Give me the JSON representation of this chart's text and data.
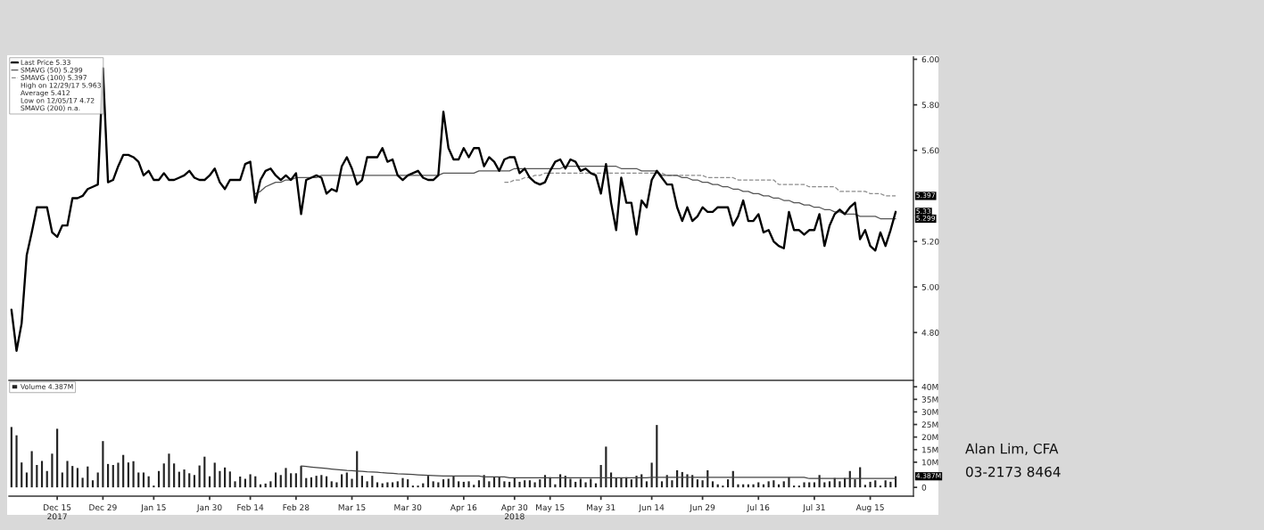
{
  "chart_data": [
    {
      "type": "line",
      "categories": [
        null,
        null,
        null,
        null,
        null,
        null,
        null,
        null,
        null,
        null,
        null,
        null,
        null,
        null,
        null,
        null,
        null,
        null,
        null,
        null,
        null,
        null,
        null,
        null,
        null,
        null,
        null,
        null,
        null,
        null,
        null,
        null,
        null,
        null,
        null,
        null,
        null,
        null,
        null,
        null,
        null,
        null,
        null,
        null,
        null,
        null,
        null,
        null,
        null,
        null,
        null,
        null,
        null,
        null,
        null,
        null,
        null,
        null,
        null,
        null,
        null,
        null,
        null,
        null,
        null,
        null,
        null,
        null,
        null,
        null,
        null,
        null,
        null,
        null,
        null,
        null,
        null,
        null,
        null,
        null,
        null,
        null,
        null,
        null,
        null,
        null,
        null,
        null,
        null,
        null,
        null,
        null,
        null,
        null,
        null,
        null,
        null,
        null,
        null,
        null,
        null,
        null,
        null,
        null,
        null,
        null,
        null,
        null,
        null,
        null,
        null,
        null,
        null,
        null,
        null,
        null,
        null,
        null,
        null,
        null,
        null,
        null,
        null,
        null,
        null,
        null,
        null,
        null,
        null,
        null,
        null,
        null,
        null,
        null,
        null,
        null,
        null,
        null,
        null,
        null,
        null,
        null,
        null,
        null,
        null,
        null,
        null,
        null,
        null,
        null,
        null,
        null,
        null,
        null,
        null,
        null,
        null,
        null,
        null,
        null,
        null,
        null,
        null,
        null,
        null,
        null,
        null,
        null,
        null,
        null,
        null,
        null,
        null,
        null,
        null
      ],
      "series": [
        {
          "name": "Last Price 5.33",
          "color": "#000000",
          "values": [
            4.9,
            4.72,
            4.84,
            5.14,
            5.24,
            5.35,
            5.35,
            5.35,
            5.24,
            5.22,
            5.27,
            5.27,
            5.39,
            5.39,
            5.4,
            5.43,
            5.44,
            5.45,
            5.96,
            5.46,
            5.47,
            5.53,
            5.58,
            5.58,
            5.57,
            5.55,
            5.49,
            5.51,
            5.47,
            5.47,
            5.5,
            5.47,
            5.47,
            5.48,
            5.49,
            5.51,
            5.48,
            5.47,
            5.47,
            5.49,
            5.52,
            5.46,
            5.43,
            5.47,
            5.47,
            5.47,
            5.54,
            5.55,
            5.37,
            5.47,
            5.51,
            5.52,
            5.49,
            5.47,
            5.49,
            5.47,
            5.5,
            5.32,
            5.47,
            5.48,
            5.49,
            5.48,
            5.41,
            5.43,
            5.42,
            5.53,
            5.57,
            5.52,
            5.45,
            5.47,
            5.57,
            5.57,
            5.57,
            5.61,
            5.55,
            5.56,
            5.49,
            5.47,
            5.49,
            5.5,
            5.51,
            5.48,
            5.47,
            5.47,
            5.49,
            5.77,
            5.61,
            5.56,
            5.56,
            5.61,
            5.57,
            5.61,
            5.61,
            5.53,
            5.57,
            5.55,
            5.51,
            5.56,
            5.57,
            5.57,
            5.5,
            5.52,
            5.48,
            5.46,
            5.45,
            5.46,
            5.51,
            5.55,
            5.56,
            5.52,
            5.56,
            5.55,
            5.51,
            5.52,
            5.5,
            5.49,
            5.41,
            5.54,
            5.37,
            5.25,
            5.48,
            5.37,
            5.37,
            5.23,
            5.38,
            5.35,
            5.47,
            5.51,
            5.48,
            5.45,
            5.45,
            5.35,
            5.29,
            5.35,
            5.29,
            5.31,
            5.35,
            5.33,
            5.33,
            5.35,
            5.35,
            5.35,
            5.27,
            5.31,
            5.38,
            5.29,
            5.29,
            5.32,
            5.24,
            5.25,
            5.2,
            5.18,
            5.17,
            5.33,
            5.25,
            5.25,
            5.23,
            5.25,
            5.25,
            5.32,
            5.18,
            5.27,
            5.32,
            5.34,
            5.32,
            5.35,
            5.37,
            5.21,
            5.25,
            5.18,
            5.16,
            5.24,
            5.18,
            5.25,
            5.33
          ]
        },
        {
          "name": "SMAVG (50) 5.299",
          "color": "#555555",
          "line_style": "solid",
          "values": [
            null,
            null,
            null,
            null,
            null,
            null,
            null,
            null,
            null,
            null,
            null,
            null,
            null,
            null,
            null,
            null,
            null,
            null,
            null,
            null,
            null,
            null,
            null,
            null,
            null,
            null,
            null,
            null,
            null,
            null,
            null,
            null,
            null,
            null,
            null,
            null,
            null,
            null,
            null,
            null,
            null,
            null,
            null,
            null,
            null,
            null,
            null,
            null,
            5.41,
            5.42,
            5.44,
            5.45,
            5.46,
            5.46,
            5.47,
            5.47,
            5.48,
            5.48,
            5.48,
            5.48,
            5.48,
            5.49,
            5.49,
            5.49,
            5.49,
            5.49,
            5.49,
            5.49,
            5.49,
            5.49,
            5.49,
            5.49,
            5.49,
            5.49,
            5.49,
            5.49,
            5.49,
            5.49,
            5.49,
            5.49,
            5.49,
            5.49,
            5.49,
            5.49,
            5.49,
            5.5,
            5.5,
            5.5,
            5.5,
            5.5,
            5.5,
            5.5,
            5.51,
            5.51,
            5.51,
            5.51,
            5.51,
            5.51,
            5.51,
            5.52,
            5.52,
            5.52,
            5.52,
            5.52,
            5.52,
            5.52,
            5.52,
            5.52,
            5.52,
            5.53,
            5.53,
            5.53,
            5.53,
            5.53,
            5.53,
            5.53,
            5.53,
            5.53,
            5.53,
            5.53,
            5.52,
            5.52,
            5.52,
            5.52,
            5.51,
            5.51,
            5.51,
            5.51,
            5.49,
            5.49,
            5.49,
            5.49,
            5.48,
            5.48,
            5.47,
            5.47,
            5.46,
            5.46,
            5.45,
            5.45,
            5.44,
            5.44,
            5.43,
            5.43,
            5.42,
            5.42,
            5.41,
            5.41,
            5.4,
            5.4,
            5.39,
            5.39,
            5.38,
            5.38,
            5.37,
            5.37,
            5.36,
            5.36,
            5.35,
            5.35,
            5.34,
            5.34,
            5.33,
            5.33,
            5.32,
            5.32,
            5.32,
            5.31,
            5.31,
            5.31,
            5.31,
            5.3,
            5.3,
            5.3,
            5.3
          ]
        },
        {
          "name": "SMAVG (100) 5.397",
          "color": "#8c8c8c",
          "line_style": "dashed",
          "values": [
            null,
            null,
            null,
            null,
            null,
            null,
            null,
            null,
            null,
            null,
            null,
            null,
            null,
            null,
            null,
            null,
            null,
            null,
            null,
            null,
            null,
            null,
            null,
            null,
            null,
            null,
            null,
            null,
            null,
            null,
            null,
            null,
            null,
            null,
            null,
            null,
            null,
            null,
            null,
            null,
            null,
            null,
            null,
            null,
            null,
            null,
            null,
            null,
            null,
            null,
            null,
            null,
            null,
            null,
            null,
            null,
            null,
            null,
            null,
            null,
            null,
            null,
            null,
            null,
            null,
            null,
            null,
            null,
            null,
            null,
            null,
            null,
            null,
            null,
            null,
            null,
            null,
            null,
            null,
            null,
            null,
            null,
            null,
            null,
            null,
            null,
            null,
            null,
            null,
            null,
            null,
            null,
            null,
            null,
            null,
            null,
            null,
            5.46,
            5.46,
            5.47,
            5.47,
            5.48,
            5.48,
            5.49,
            5.49,
            5.5,
            5.5,
            5.5,
            5.5,
            5.5,
            5.5,
            5.5,
            5.5,
            5.5,
            5.5,
            5.5,
            5.5,
            5.5,
            5.5,
            5.5,
            5.5,
            5.5,
            5.5,
            5.5,
            5.5,
            5.5,
            5.5,
            5.5,
            5.5,
            5.49,
            5.49,
            5.49,
            5.49,
            5.49,
            5.49,
            5.49,
            5.49,
            5.48,
            5.48,
            5.48,
            5.48,
            5.48,
            5.48,
            5.47,
            5.47,
            5.47,
            5.47,
            5.47,
            5.47,
            5.47,
            5.47,
            5.45,
            5.45,
            5.45,
            5.45,
            5.45,
            5.45,
            5.44,
            5.44,
            5.44,
            5.44,
            5.44,
            5.44,
            5.42,
            5.42,
            5.42,
            5.42,
            5.42,
            5.42,
            5.41,
            5.41,
            5.41,
            5.4,
            5.4,
            5.4
          ]
        }
      ],
      "ylim": [
        4.59,
        6.01
      ],
      "yticks": [
        {
          "value": 4.8,
          "label": "4.80"
        },
        {
          "value": 5.0,
          "label": "5.00"
        },
        {
          "value": 5.2,
          "label": "5.20"
        },
        {
          "value": 5.6,
          "label": "5.60"
        },
        {
          "value": 5.8,
          "label": "5.80"
        },
        {
          "value": 6.0,
          "label": "6.00"
        }
      ],
      "tick_labels": "y",
      "legend": "top left",
      "annotations": [
        "High on 12/29/17 5.963",
        "Average 5.412",
        "Low on 12/05/17 4.72",
        "SMAVG (200) n.a.",
        "5.33",
        "5.299",
        "5.397"
      ]
    },
    {
      "type": "bar",
      "categories": [
        null,
        null,
        null,
        null,
        null,
        null,
        null,
        null,
        null,
        "Dec 15\n2017",
        null,
        null,
        null,
        null,
        null,
        null,
        null,
        null,
        "Dec 29",
        null,
        null,
        null,
        null,
        null,
        null,
        null,
        null,
        null,
        "Jan 15",
        null,
        null,
        null,
        null,
        null,
        null,
        null,
        null,
        null,
        null,
        "Jan 30",
        null,
        null,
        null,
        null,
        null,
        null,
        null,
        "Feb 14",
        null,
        null,
        null,
        null,
        null,
        null,
        null,
        null,
        "Feb 28",
        null,
        null,
        null,
        null,
        null,
        null,
        null,
        null,
        null,
        null,
        "Mar 15",
        null,
        null,
        null,
        null,
        null,
        null,
        null,
        null,
        null,
        null,
        "Mar 30",
        null,
        null,
        null,
        null,
        null,
        null,
        null,
        null,
        null,
        null,
        "Apr 16",
        null,
        null,
        null,
        null,
        null,
        null,
        null,
        null,
        null,
        "Apr 30\n2018",
        null,
        null,
        null,
        null,
        null,
        null,
        "May 15",
        null,
        null,
        null,
        null,
        null,
        null,
        null,
        null,
        null,
        "May 31",
        null,
        null,
        null,
        null,
        null,
        null,
        null,
        null,
        null,
        "Jun 14",
        null,
        null,
        null,
        null,
        null,
        null,
        null,
        null,
        null,
        "Jun 29",
        null,
        null,
        null,
        null,
        null,
        null,
        null,
        null,
        null,
        null,
        "Jul 16",
        null,
        null,
        null,
        null,
        null,
        null,
        null,
        null,
        null,
        null,
        "Jul 31",
        null,
        null,
        null,
        null,
        null,
        null,
        null,
        null,
        null,
        null,
        "Aug 15",
        null,
        null,
        null,
        null,
        null
      ],
      "series": [
        {
          "name": "Volume 4.387M",
          "color": "#222222",
          "values": [
            24.0,
            20.7,
            9.9,
            5.9,
            14.4,
            8.9,
            10.5,
            6.5,
            13.4,
            23.3,
            5.9,
            10.5,
            8.5,
            7.7,
            3.8,
            8.3,
            2.8,
            5.9,
            18.4,
            9.3,
            8.9,
            9.8,
            12.9,
            9.9,
            10.4,
            5.9,
            5.9,
            4.4,
            0.7,
            6.5,
            9.5,
            13.4,
            9.5,
            6.2,
            7.1,
            5.6,
            4.9,
            8.7,
            12.2,
            4.4,
            9.8,
            6.5,
            7.9,
            6.3,
            2.4,
            4.3,
            3.4,
            5.2,
            4.4,
            1.2,
            1.5,
            2.4,
            5.9,
            4.9,
            7.7,
            5.6,
            5.6,
            8.5,
            3.7,
            4.0,
            4.6,
            4.9,
            4.4,
            2.4,
            2.0,
            5.2,
            5.9,
            3.4,
            14.4,
            4.6,
            2.4,
            4.6,
            2.0,
            1.6,
            2.0,
            2.0,
            2.4,
            3.7,
            3.2,
            0.7,
            0.7,
            1.6,
            4.6,
            2.4,
            2.0,
            3.2,
            3.4,
            4.6,
            2.4,
            2.2,
            2.4,
            1.0,
            2.8,
            4.9,
            2.4,
            4.0,
            4.0,
            2.4,
            2.2,
            3.7,
            2.2,
            2.8,
            2.8,
            2.0,
            3.2,
            4.9,
            4.0,
            1.2,
            5.2,
            4.6,
            3.4,
            2.2,
            3.4,
            2.0,
            3.4,
            1.6,
            8.9,
            16.2,
            5.9,
            3.7,
            3.7,
            4.0,
            3.2,
            4.6,
            5.2,
            2.4,
            9.8,
            24.8,
            2.4,
            4.9,
            2.8,
            6.8,
            6.1,
            5.2,
            4.9,
            3.2,
            2.8,
            6.8,
            2.4,
            1.2,
            0.7,
            3.2,
            6.5,
            1.2,
            1.2,
            1.2,
            1.2,
            2.0,
            1.2,
            2.4,
            2.8,
            1.2,
            2.4,
            4.0,
            0.7,
            0.7,
            2.0,
            2.0,
            2.0,
            4.9,
            2.0,
            2.4,
            3.7,
            2.4,
            3.7,
            6.5,
            3.2,
            8.0,
            1.0,
            2.2,
            2.8,
            0.7,
            2.8,
            2.2,
            4.4
          ]
        },
        {
          "type": "line",
          "color": "#444444",
          "line_style": "solid",
          "values": [
            null,
            null,
            null,
            null,
            null,
            null,
            null,
            null,
            null,
            null,
            null,
            null,
            null,
            null,
            null,
            null,
            null,
            null,
            null,
            null,
            null,
            null,
            null,
            null,
            null,
            null,
            null,
            null,
            null,
            null,
            null,
            null,
            null,
            null,
            null,
            null,
            null,
            null,
            null,
            null,
            null,
            null,
            null,
            null,
            null,
            null,
            null,
            null,
            null,
            null,
            null,
            null,
            null,
            null,
            null,
            null,
            null,
            8.5,
            8.3,
            8.1,
            7.9,
            7.7,
            7.5,
            7.3,
            7.1,
            6.9,
            6.7,
            6.6,
            6.5,
            6.4,
            6.2,
            6.1,
            6.0,
            5.8,
            5.7,
            5.6,
            5.4,
            5.3,
            5.2,
            5.1,
            5.0,
            4.9,
            4.8,
            4.7,
            4.6,
            4.5,
            4.5,
            4.5,
            4.5,
            4.5,
            4.5,
            4.5,
            4.5,
            4.2,
            4.2,
            4.2,
            4.2,
            4.2,
            3.8,
            3.8,
            3.8,
            3.8,
            3.8,
            3.8,
            3.8,
            3.8,
            3.8,
            3.8,
            3.8,
            3.8,
            3.8,
            3.8,
            3.8,
            3.8,
            3.8,
            3.8,
            3.8,
            3.8,
            3.8,
            3.8,
            3.8,
            3.8,
            3.8,
            3.8,
            3.8,
            3.8,
            4.0,
            4.0,
            4.0,
            4.0,
            4.0,
            4.0,
            4.0,
            4.0,
            4.0,
            4.0,
            4.0,
            4.0,
            4.0,
            4.0,
            4.0,
            4.0,
            4.0,
            4.0,
            4.0,
            4.0,
            4.0,
            4.0,
            4.0,
            4.0,
            4.0,
            4.0,
            4.0,
            4.0,
            4.0,
            4.0,
            4.0,
            3.5,
            3.5,
            3.5,
            3.5,
            3.5,
            3.5,
            3.5,
            3.5,
            3.5,
            3.5,
            3.5,
            3.5,
            3.5,
            3.5,
            3.5,
            3.5,
            3.5,
            3.5
          ]
        }
      ],
      "ylim": [
        -3.5,
        42.2
      ],
      "yticks": [
        0,
        {
          "value": 10,
          "label": "10M"
        },
        {
          "value": 15,
          "label": "15M"
        },
        {
          "value": 20,
          "label": "20M"
        },
        {
          "value": 25,
          "label": "25M"
        },
        {
          "value": 30,
          "label": "30M"
        },
        {
          "value": 35,
          "label": "35M"
        },
        {
          "value": 40,
          "label": "40M"
        }
      ],
      "legend": "top left",
      "annotations": [
        "Alan Lim, CFA",
        "03-2173 8464",
        "4.387M"
      ]
    }
  ]
}
